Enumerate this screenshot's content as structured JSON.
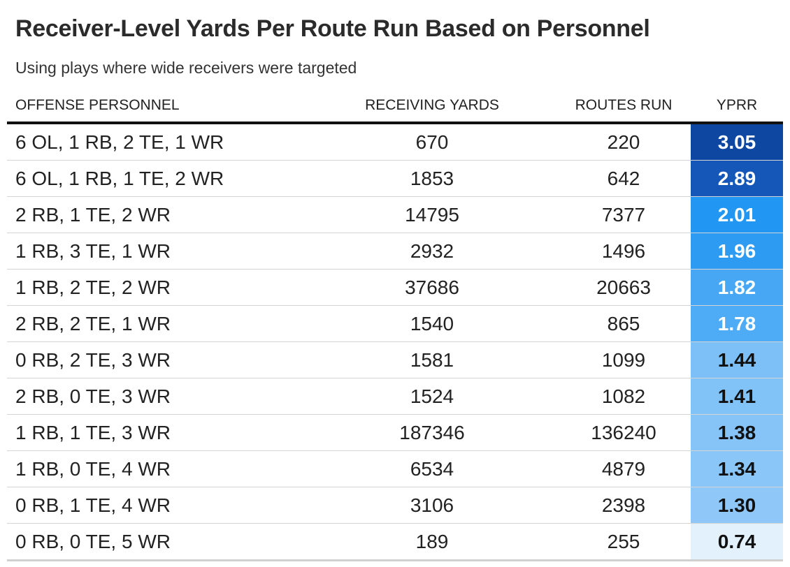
{
  "title": "Receiver-Level Yards Per Route Run Based on Personnel",
  "subtitle": "Using plays where wide receivers were targeted",
  "columns": [
    "OFFENSE PERSONNEL",
    "RECEIVING YARDS",
    "ROUTES RUN",
    "YPRR"
  ],
  "rows": [
    {
      "personnel": "6 OL, 1 RB, 2 TE, 1 WR",
      "yards": "670",
      "routes": "220",
      "yprr": "3.05",
      "bg": "#0d47a1",
      "fg": "#ffffff"
    },
    {
      "personnel": "6 OL, 1 RB, 1 TE, 2 WR",
      "yards": "1853",
      "routes": "642",
      "yprr": "2.89",
      "bg": "#1557b8",
      "fg": "#ffffff"
    },
    {
      "personnel": "2 RB, 1 TE, 2 WR",
      "yards": "14795",
      "routes": "7377",
      "yprr": "2.01",
      "bg": "#2196f3",
      "fg": "#ffffff"
    },
    {
      "personnel": "1 RB, 3 TE, 1 WR",
      "yards": "2932",
      "routes": "1496",
      "yprr": "1.96",
      "bg": "#2e9bf2",
      "fg": "#ffffff"
    },
    {
      "personnel": "1 RB, 2 TE, 2 WR",
      "yards": "37686",
      "routes": "20663",
      "yprr": "1.82",
      "bg": "#47a7f4",
      "fg": "#ffffff"
    },
    {
      "personnel": "2 RB, 2 TE, 1 WR",
      "yards": "1540",
      "routes": "865",
      "yprr": "1.78",
      "bg": "#4eabf5",
      "fg": "#ffffff"
    },
    {
      "personnel": "0 RB, 2 TE, 3 WR",
      "yards": "1581",
      "routes": "1099",
      "yprr": "1.44",
      "bg": "#7dc0f7",
      "fg": "#111111"
    },
    {
      "personnel": "2 RB, 0 TE, 3 WR",
      "yards": "1524",
      "routes": "1082",
      "yprr": "1.41",
      "bg": "#81c2f7",
      "fg": "#111111"
    },
    {
      "personnel": "1 RB, 1 TE, 3 WR",
      "yards": "187346",
      "routes": "136240",
      "yprr": "1.38",
      "bg": "#86c4f8",
      "fg": "#111111"
    },
    {
      "personnel": "1 RB, 0 TE, 4 WR",
      "yards": "6534",
      "routes": "4879",
      "yprr": "1.34",
      "bg": "#8ac6f8",
      "fg": "#111111"
    },
    {
      "personnel": "0 RB, 1 TE, 4 WR",
      "yards": "3106",
      "routes": "2398",
      "yprr": "1.30",
      "bg": "#8fc8f8",
      "fg": "#111111"
    },
    {
      "personnel": "0 RB, 0 TE, 5 WR",
      "yards": "189",
      "routes": "255",
      "yprr": "0.74",
      "bg": "#e3f1fd",
      "fg": "#111111"
    }
  ],
  "chart_data": {
    "type": "table",
    "title": "Receiver-Level Yards Per Route Run Based on Personnel",
    "subtitle": "Using plays where wide receivers were targeted",
    "columns": [
      "OFFENSE PERSONNEL",
      "RECEIVING YARDS",
      "ROUTES RUN",
      "YPRR"
    ],
    "rows": [
      [
        "6 OL, 1 RB, 2 TE, 1 WR",
        670,
        220,
        3.05
      ],
      [
        "6 OL, 1 RB, 1 TE, 2 WR",
        1853,
        642,
        2.89
      ],
      [
        "2 RB, 1 TE, 2 WR",
        14795,
        7377,
        2.01
      ],
      [
        "1 RB, 3 TE, 1 WR",
        2932,
        1496,
        1.96
      ],
      [
        "1 RB, 2 TE, 2 WR",
        37686,
        20663,
        1.82
      ],
      [
        "2 RB, 2 TE, 1 WR",
        1540,
        865,
        1.78
      ],
      [
        "0 RB, 2 TE, 3 WR",
        1581,
        1099,
        1.44
      ],
      [
        "2 RB, 0 TE, 3 WR",
        1524,
        1082,
        1.41
      ],
      [
        "1 RB, 1 TE, 3 WR",
        187346,
        136240,
        1.38
      ],
      [
        "1 RB, 0 TE, 4 WR",
        6534,
        4879,
        1.34
      ],
      [
        "0 RB, 1 TE, 4 WR",
        3106,
        2398,
        1.3
      ],
      [
        "0 RB, 0 TE, 5 WR",
        189,
        255,
        0.74
      ]
    ]
  }
}
